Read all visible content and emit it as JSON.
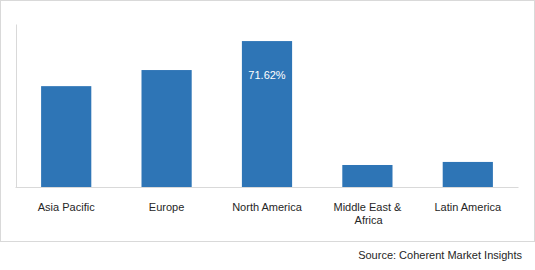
{
  "chart_data": {
    "type": "bar",
    "categories": [
      "Asia Pacific",
      "Europe",
      "North America",
      "Middle East & Africa",
      "Latin America"
    ],
    "values": [
      49.5,
      57.4,
      71.62,
      10.8,
      12.3
    ],
    "value_labels": [
      null,
      null,
      "71.62%",
      null,
      null
    ],
    "color": "#2e75b6",
    "ylim": [
      0,
      80
    ],
    "yticks": [],
    "grid": false,
    "data_labels": true,
    "tick_labels": "x",
    "annotations": [
      "Source: Coherent Market Insights"
    ]
  }
}
